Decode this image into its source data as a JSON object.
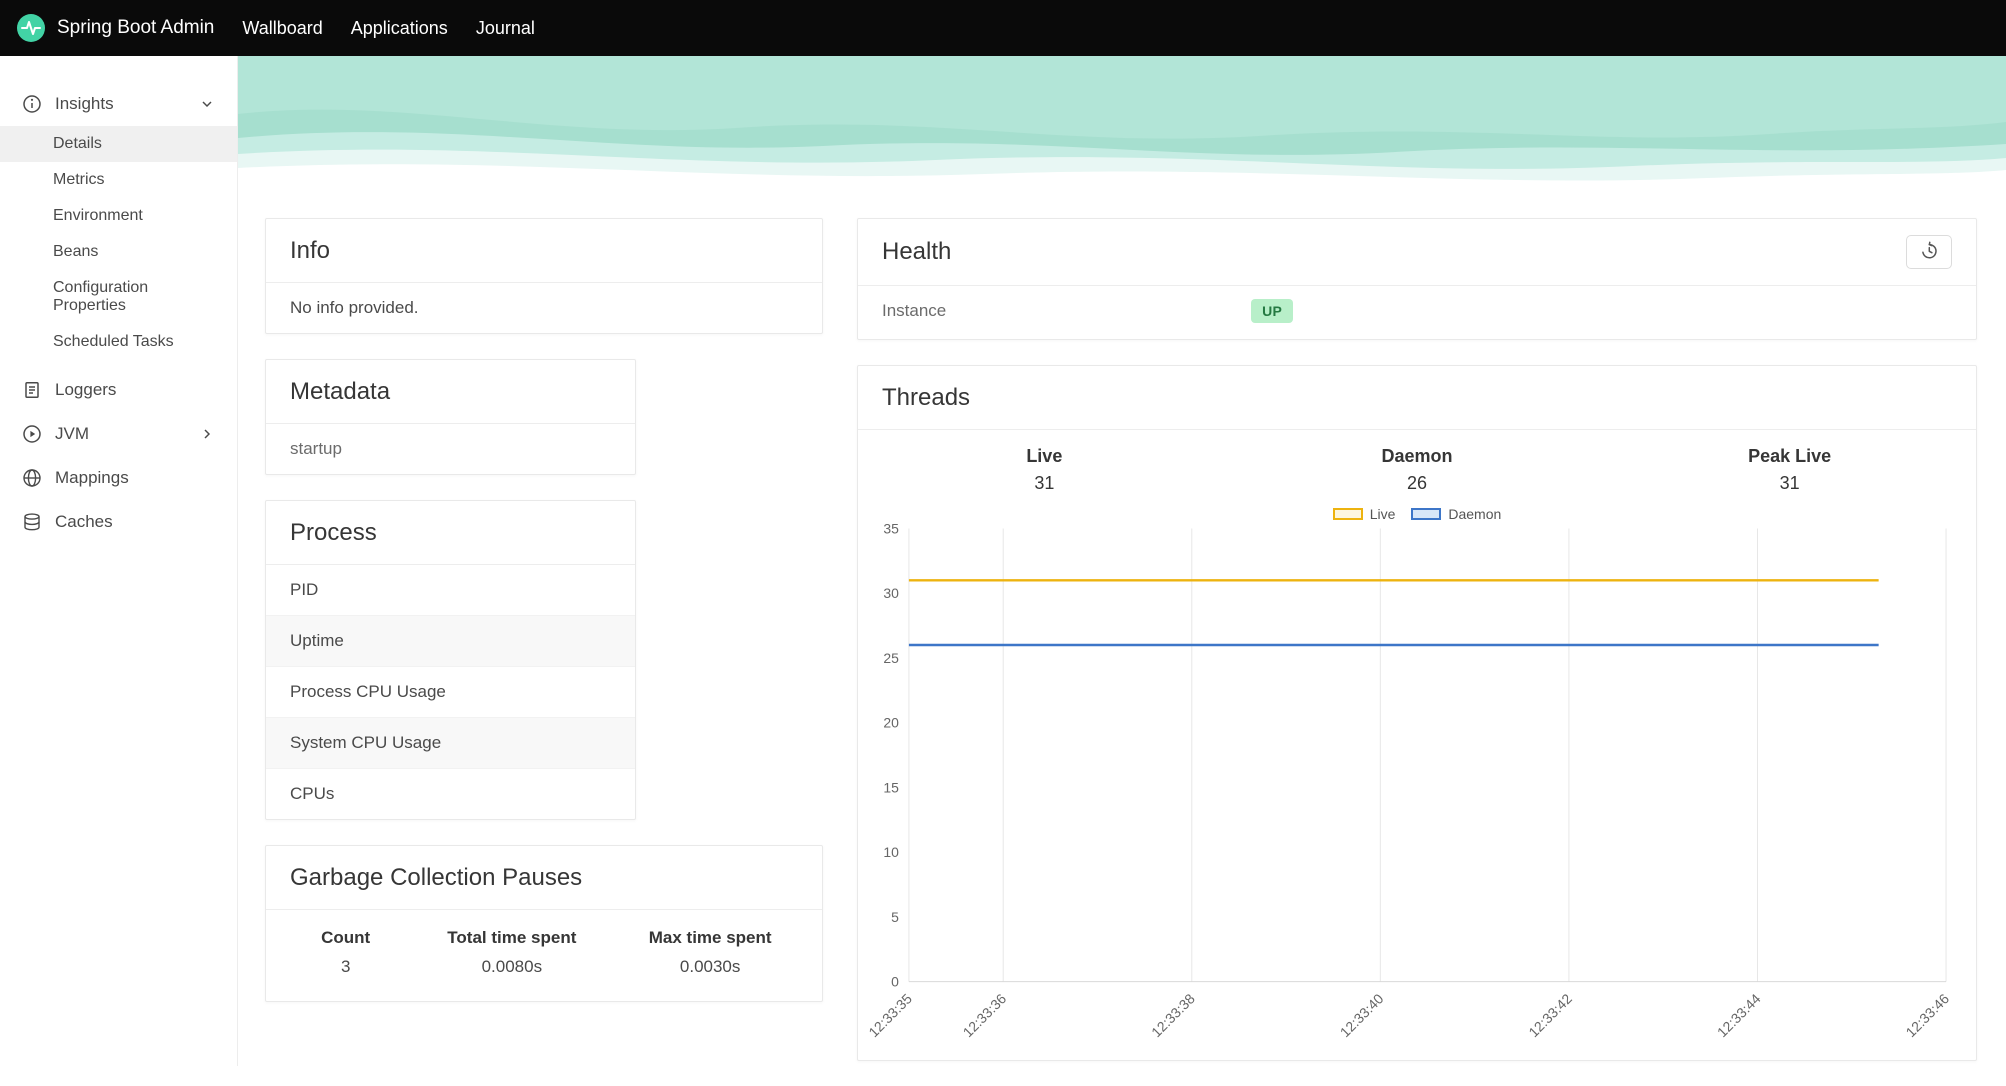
{
  "accent_color": "#42d3a5",
  "navbar": {
    "brand": "Spring Boot Admin",
    "items": [
      {
        "label": "Wallboard"
      },
      {
        "label": "Applications"
      },
      {
        "label": "Journal"
      }
    ]
  },
  "sidebar": {
    "insights_label": "Insights",
    "insights_children": [
      "Details",
      "Metrics",
      "Environment",
      "Beans",
      "Configuration Properties",
      "Scheduled Tasks"
    ],
    "active_child": "Details",
    "loggers_label": "Loggers",
    "jvm_label": "JVM",
    "mappings_label": "Mappings",
    "caches_label": "Caches"
  },
  "cards": {
    "info": {
      "title": "Info",
      "body": "No info provided."
    },
    "metadata": {
      "title": "Metadata",
      "rows": [
        "startup"
      ]
    },
    "process": {
      "title": "Process",
      "rows": [
        "PID",
        "Uptime",
        "Process CPU Usage",
        "System CPU Usage",
        "CPUs"
      ]
    },
    "gc": {
      "title": "Garbage Collection Pauses",
      "columns": [
        "Count",
        "Total time spent",
        "Max time spent"
      ],
      "values": [
        "3",
        "0.0080s",
        "0.0030s"
      ]
    },
    "health": {
      "title": "Health",
      "instance_label": "Instance",
      "status": "UP",
      "status_bg": "#b8efc9",
      "status_color": "#257942"
    },
    "threads": {
      "title": "Threads",
      "stats": [
        {
          "label": "Live",
          "value": "31"
        },
        {
          "label": "Daemon",
          "value": "26"
        },
        {
          "label": "Peak Live",
          "value": "31"
        }
      ]
    }
  },
  "chart_data": {
    "type": "line",
    "title": "Threads",
    "x_tick_labels": [
      "12:33:35",
      "12:33:36",
      "12:33:38",
      "12:33:40",
      "12:33:42",
      "12:33:44",
      "12:33:46"
    ],
    "x_tick_seconds": [
      35,
      36,
      38,
      40,
      42,
      44,
      46
    ],
    "x_range_seconds": [
      35,
      46
    ],
    "ylim": [
      0,
      35
    ],
    "y_ticks": [
      0,
      5,
      10,
      15,
      20,
      25,
      30,
      35
    ],
    "grid": "vertical-only",
    "legend_position": "top-center",
    "line_end_fraction": 0.935,
    "series": [
      {
        "name": "Live",
        "color": "#edb30f",
        "fill": "#fdf6df",
        "value": 31
      },
      {
        "name": "Daemon",
        "color": "#3d76c8",
        "fill": "#d8e7f8",
        "value": 26
      }
    ]
  }
}
